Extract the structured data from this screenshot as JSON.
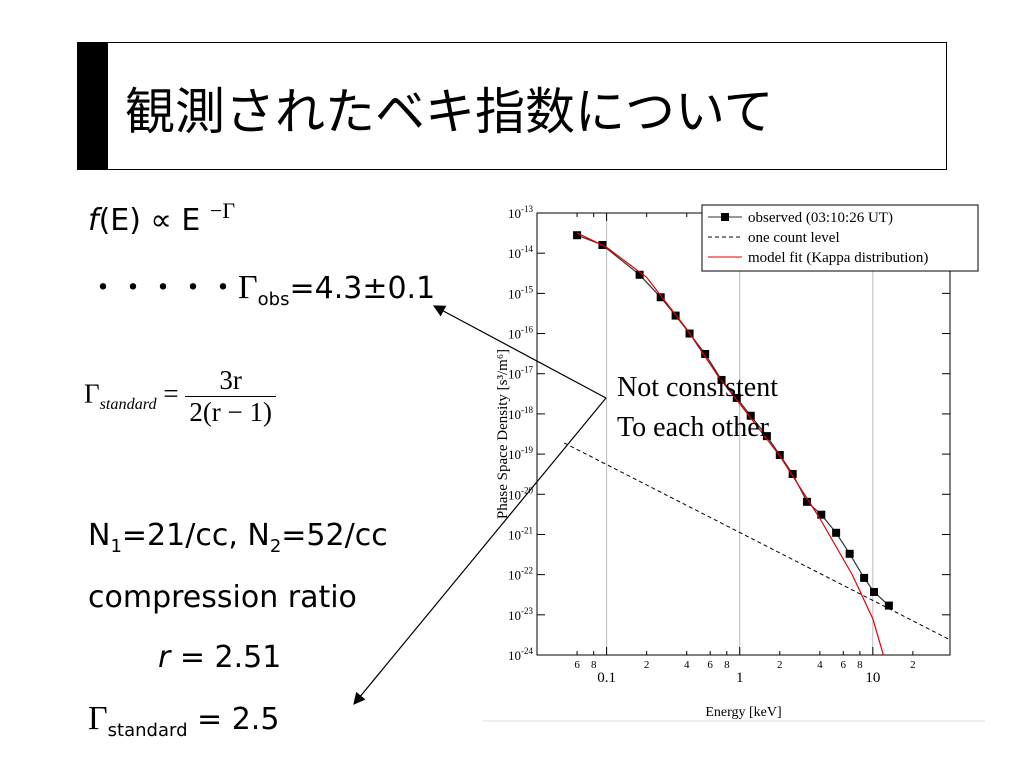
{
  "header": {
    "title": "観測されたベキ指数について"
  },
  "text": [
    [
      "f",
      "(E) ∝ E ",
      "−Γ"
    ],
    [
      "・・・・・",
      "Γ",
      "obs",
      "=4.3±0.1"
    ],
    [
      "Γ",
      "standard",
      " = ",
      "3r",
      "2(r − 1)"
    ],
    [
      "N",
      "1",
      "=21/cc, N",
      "2",
      "=52/cc"
    ],
    [
      "compression ratio"
    ],
    [
      "r",
      " = 2.51"
    ],
    [
      "Γ",
      "standard",
      " = 2.5"
    ]
  ],
  "annotation": [
    "Not consistent",
    "To each other"
  ],
  "chart_data": {
    "type": "line",
    "xlabel": "Energy [keV]",
    "ylabel": "Phase Space Density [s³/m⁶]",
    "log_x": true,
    "log_y": true,
    "xlim": [
      0.03,
      38
    ],
    "ylim": [
      1e-24,
      1e-13
    ],
    "xticks": [
      {
        "value": 0.06,
        "label": "6"
      },
      {
        "value": 0.08,
        "label": "8"
      },
      0.1,
      {
        "value": 0.2,
        "label": "2"
      },
      {
        "value": 0.4,
        "label": "4"
      },
      {
        "value": 0.6,
        "label": "6"
      },
      {
        "value": 0.8,
        "label": "8"
      },
      1,
      {
        "value": 2,
        "label": "2"
      },
      {
        "value": 4,
        "label": "4"
      },
      {
        "value": 6,
        "label": "6"
      },
      {
        "value": 8,
        "label": "8"
      },
      10,
      {
        "value": 20,
        "label": "2"
      }
    ],
    "yticks": [
      {
        "value": 1e-13,
        "label": "10",
        "exponent": "-13"
      },
      {
        "value": 1e-14,
        "label": "10",
        "exponent": "-14"
      },
      {
        "value": 1e-15,
        "label": "10",
        "exponent": "-15"
      },
      {
        "value": 1e-16,
        "label": "10",
        "exponent": "-16"
      },
      {
        "value": 1e-17,
        "label": "10",
        "exponent": "-17"
      },
      {
        "value": 1e-18,
        "label": "10",
        "exponent": "-18"
      },
      {
        "value": 1e-19,
        "label": "10",
        "exponent": "-19"
      },
      {
        "value": 1e-20,
        "label": "10",
        "exponent": "-20"
      },
      {
        "value": 1e-21,
        "label": "10",
        "exponent": "-21"
      },
      {
        "value": 1e-22,
        "label": "10",
        "exponent": "-22"
      },
      {
        "value": 1e-23,
        "label": "10",
        "exponent": "-23"
      },
      {
        "value": 1e-24,
        "label": "10",
        "exponent": "-24"
      }
    ],
    "legend": "upper right",
    "series": [
      {
        "name": "observed (03:10:26 UT)",
        "color": "#333333",
        "marker": "square",
        "x": [
          0.06,
          0.093,
          0.177,
          0.255,
          0.33,
          0.42,
          0.55,
          0.73,
          0.95,
          1.21,
          1.6,
          2.0,
          2.5,
          3.2,
          4.1,
          5.3,
          6.7,
          8.6,
          10.2,
          13.2
        ],
        "values": [
          2.8e-14,
          1.6e-14,
          2.9e-15,
          8e-16,
          2.8e-16,
          1e-16,
          3.1e-17,
          7e-18,
          2.5e-18,
          9e-19,
          2.8e-19,
          9.5e-20,
          3.2e-20,
          6.5e-21,
          3.1e-21,
          1.1e-21,
          3.3e-22,
          8.3e-23,
          3.7e-23,
          1.7e-23
        ]
      },
      {
        "name": "one count level",
        "color": "#000000",
        "dash": true,
        "x": [
          0.048,
          37.9
        ],
        "values": [
          1.9e-19,
          2.4e-24
        ]
      },
      {
        "name": "model fit (Kappa distribution)",
        "color": "#e00000",
        "x": [
          0.06,
          0.1,
          0.2,
          0.4,
          0.7,
          1,
          2,
          4,
          7,
          10,
          12
        ],
        "values": [
          3.2e-14,
          1.4e-14,
          2.5e-15,
          1.3e-16,
          8e-18,
          1.8e-18,
          9e-20,
          2.5e-21,
          1e-22,
          8e-24,
          1e-24
        ]
      }
    ]
  }
}
